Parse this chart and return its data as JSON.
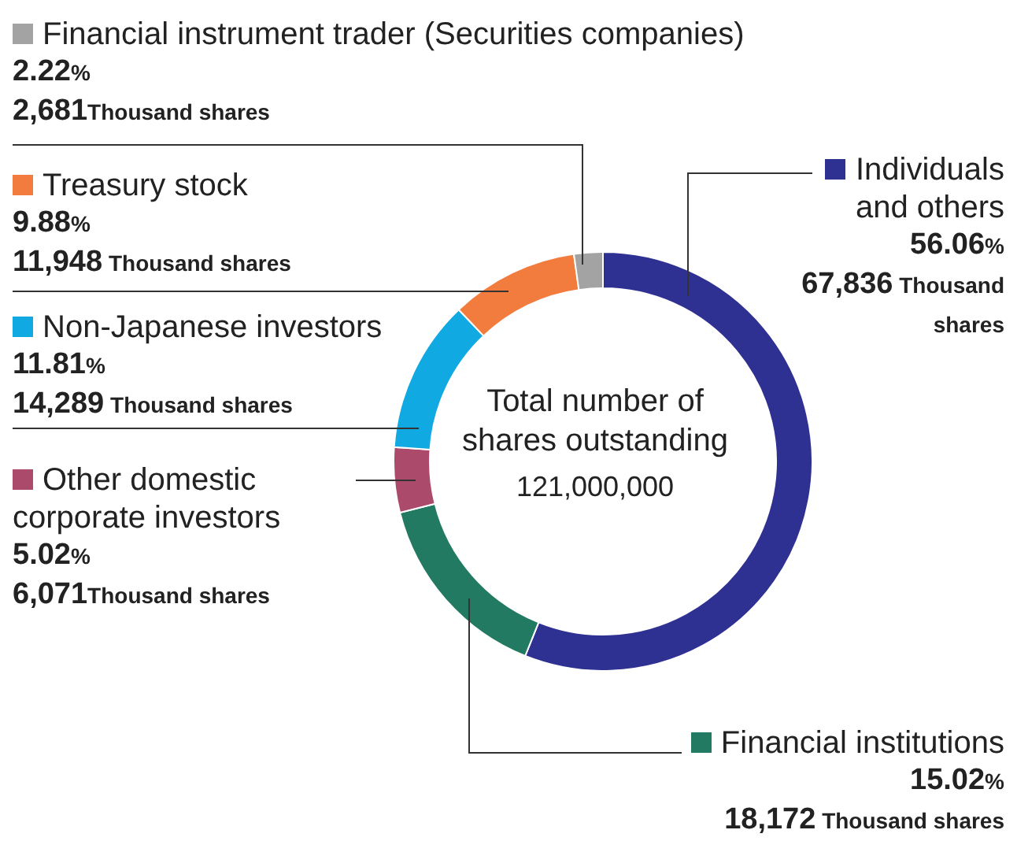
{
  "chart_data": {
    "type": "donut",
    "categories": [
      "Individuals and others",
      "Financial institutions",
      "Other domestic corporate investors",
      "Non-Japanese investors",
      "Treasury stock",
      "Financial instrument trader (Securities companies)"
    ],
    "values": [
      56.06,
      15.02,
      5.02,
      11.81,
      9.88,
      2.22
    ],
    "colors": [
      "#2e3192",
      "#237a62",
      "#ac4a6c",
      "#11a9e2",
      "#f27b3e",
      "#a3a3a3"
    ],
    "value_labels": [
      "56.06%",
      "15.02%",
      "5.02%",
      "11.81%",
      "9.88%",
      "2.22%"
    ],
    "legend": "left",
    "annotations": [
      "Total number of shares outstanding",
      "121,000,000",
      {
        "text": "67,836 Thousand shares",
        "x": "Individuals and others"
      },
      {
        "text": "18,172 Thousand shares",
        "x": "Financial institutions"
      },
      {
        "text": "6,071Thousand shares",
        "x": "Other domestic corporate investors"
      },
      {
        "text": "14,289 Thousand shares",
        "x": "Non-Japanese investors"
      },
      {
        "text": "11,948 Thousand shares",
        "x": "Treasury stock"
      },
      {
        "text": "2,681Thousand shares",
        "x": "Financial instrument trader (Securities companies)"
      }
    ]
  }
}
